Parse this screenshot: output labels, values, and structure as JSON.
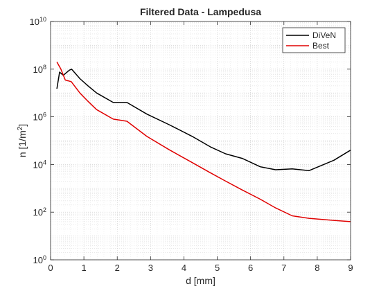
{
  "chart_data": {
    "type": "line",
    "title": "Filtered Data - Lampedusa",
    "xlabel": "d [mm]",
    "ylabel": "n [1/m",
    "ylabel_sup": "2",
    "ylabel_close": "]",
    "xlim": [
      0,
      9
    ],
    "ylim": [
      1,
      10000000000
    ],
    "yscale": "log",
    "xticks": [
      "0",
      "1",
      "2",
      "3",
      "4",
      "5",
      "6",
      "7",
      "8",
      "9"
    ],
    "yticks": [
      {
        "base": "10",
        "exp": "0"
      },
      {
        "base": "10",
        "exp": "2"
      },
      {
        "base": "10",
        "exp": "4"
      },
      {
        "base": "10",
        "exp": "6"
      },
      {
        "base": "10",
        "exp": "8"
      },
      {
        "base": "10",
        "exp": "10"
      }
    ],
    "grid": true,
    "legend_position": "top-right",
    "series": [
      {
        "name": "DiVeN",
        "color": "#000000",
        "x": [
          0.19,
          0.27,
          0.38,
          0.56,
          0.63,
          0.88,
          1.12,
          1.38,
          1.88,
          2.29,
          2.89,
          3.58,
          4.25,
          4.79,
          5.25,
          5.75,
          6.29,
          6.75,
          7.25,
          7.75,
          8.5,
          9.0
        ],
        "y": [
          15000000,
          75000000,
          55000000,
          90000000,
          100000000,
          40000000,
          20000000,
          10000000,
          4000000,
          4000000,
          1300000,
          450000,
          150000,
          55000,
          28000,
          18000,
          8000,
          6000,
          6500,
          5500,
          15000,
          40000
        ]
      },
      {
        "name": "Best",
        "color": "#e00000",
        "x": [
          0.19,
          0.31,
          0.44,
          0.62,
          0.88,
          1.12,
          1.38,
          1.88,
          2.29,
          2.89,
          3.58,
          4.25,
          4.79,
          5.25,
          5.75,
          6.29,
          6.75,
          7.25,
          7.75,
          8.5,
          9.0
        ],
        "y": [
          200000000,
          100000000,
          35000000,
          30000000,
          10000000,
          4500000,
          2000000,
          800000,
          650000,
          150000,
          40000,
          12000,
          4500,
          2000,
          850,
          350,
          150,
          70,
          55,
          45,
          40
        ]
      }
    ]
  }
}
